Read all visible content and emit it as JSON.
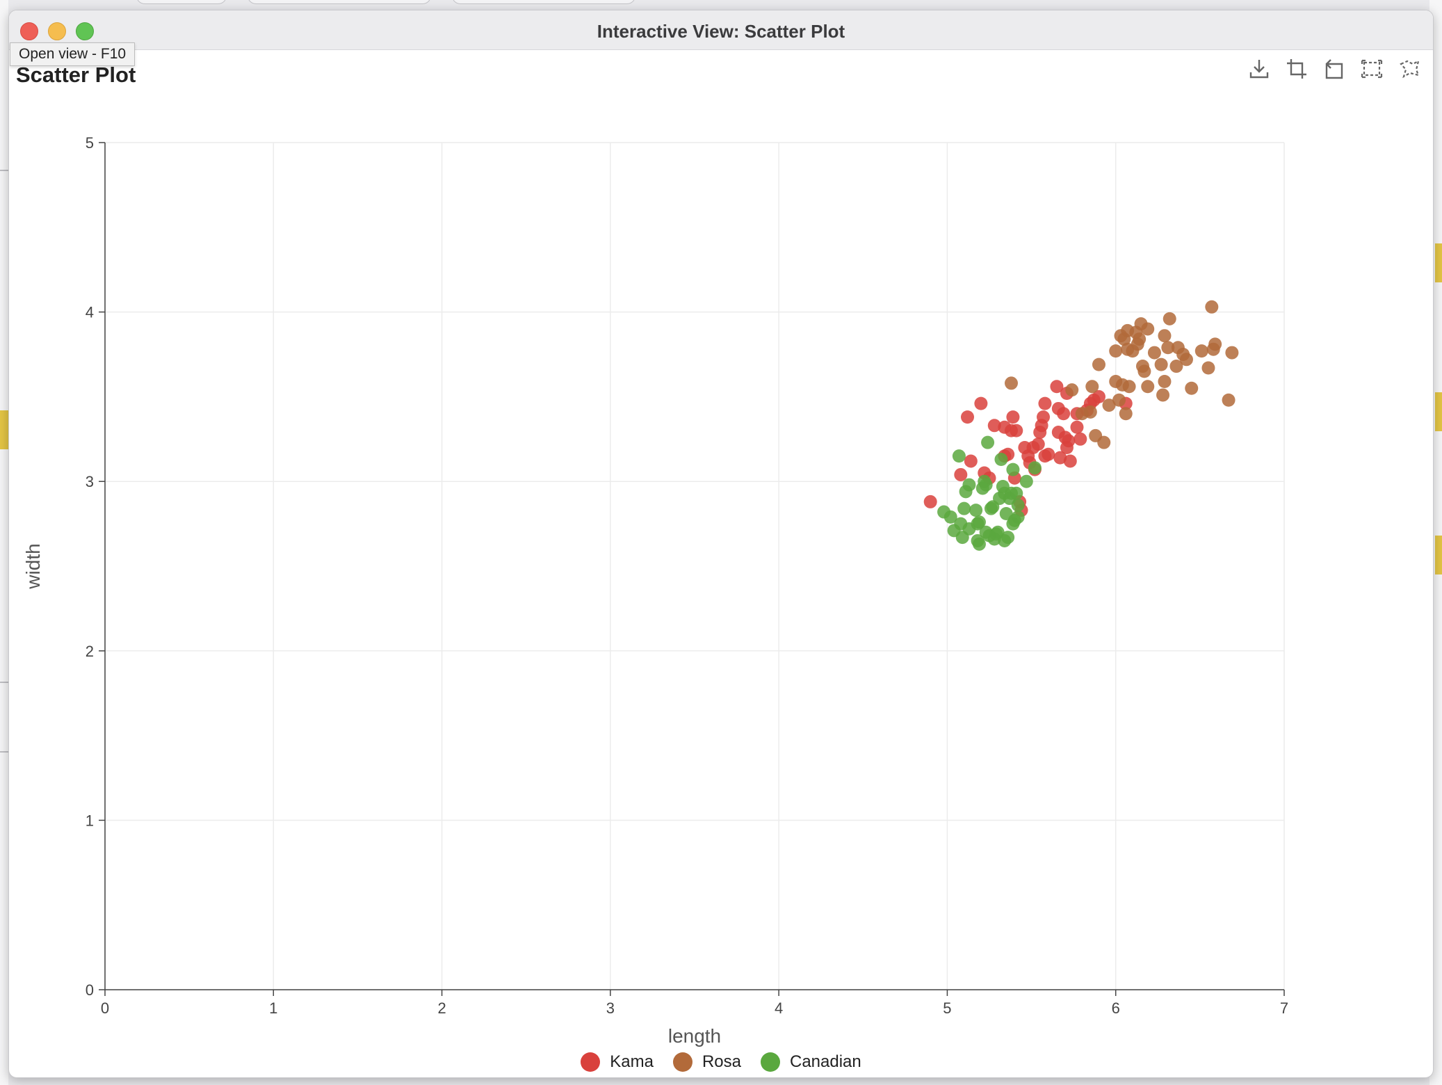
{
  "window": {
    "title": "Interactive View: Scatter Plot",
    "tooltip": "Open view - F10"
  },
  "toolbar": {
    "icons": [
      "download-icon",
      "crop-icon",
      "reset-icon",
      "rectangle-select-icon",
      "lasso-select-icon"
    ]
  },
  "colors": {
    "Kama": "#d9413c",
    "Rosa": "#b26a3a",
    "Canadian": "#5aa83e"
  },
  "chart_data": {
    "type": "scatter",
    "title": "Scatter Plot",
    "xlabel": "length",
    "ylabel": "width",
    "xlim": [
      0,
      7
    ],
    "ylim": [
      0,
      5
    ],
    "xticks": [
      0,
      1,
      2,
      3,
      4,
      5,
      6,
      7
    ],
    "yticks": [
      0,
      1,
      2,
      3,
      4,
      5
    ],
    "grid": true,
    "legend_position": "bottom",
    "series": [
      {
        "name": "Kama",
        "points": [
          [
            4.9,
            2.88
          ],
          [
            5.08,
            3.04
          ],
          [
            5.12,
            3.38
          ],
          [
            5.14,
            3.12
          ],
          [
            5.2,
            3.46
          ],
          [
            5.22,
            3.05
          ],
          [
            5.25,
            3.02
          ],
          [
            5.28,
            3.33
          ],
          [
            5.34,
            3.32
          ],
          [
            5.34,
            3.15
          ],
          [
            5.36,
            3.16
          ],
          [
            5.38,
            3.3
          ],
          [
            5.39,
            3.38
          ],
          [
            5.41,
            3.3
          ],
          [
            5.4,
            3.02
          ],
          [
            5.43,
            2.88
          ],
          [
            5.44,
            2.83
          ],
          [
            5.46,
            3.2
          ],
          [
            5.48,
            3.15
          ],
          [
            5.49,
            3.11
          ],
          [
            5.51,
            3.2
          ],
          [
            5.52,
            3.07
          ],
          [
            5.54,
            3.22
          ],
          [
            5.55,
            3.29
          ],
          [
            5.56,
            3.33
          ],
          [
            5.57,
            3.38
          ],
          [
            5.58,
            3.15
          ],
          [
            5.6,
            3.16
          ],
          [
            5.58,
            3.46
          ],
          [
            5.65,
            3.56
          ],
          [
            5.66,
            3.43
          ],
          [
            5.66,
            3.29
          ],
          [
            5.67,
            3.14
          ],
          [
            5.69,
            3.4
          ],
          [
            5.7,
            3.26
          ],
          [
            5.71,
            3.2
          ],
          [
            5.72,
            3.24
          ],
          [
            5.73,
            3.12
          ],
          [
            5.71,
            3.52
          ],
          [
            5.77,
            3.4
          ],
          [
            5.77,
            3.32
          ],
          [
            5.79,
            3.25
          ],
          [
            5.83,
            3.42
          ],
          [
            5.85,
            3.46
          ],
          [
            5.87,
            3.48
          ],
          [
            5.9,
            3.5
          ],
          [
            6.06,
            3.46
          ]
        ]
      },
      {
        "name": "Rosa",
        "points": [
          [
            5.38,
            3.58
          ],
          [
            5.74,
            3.54
          ],
          [
            5.8,
            3.4
          ],
          [
            5.85,
            3.41
          ],
          [
            5.86,
            3.56
          ],
          [
            5.9,
            3.69
          ],
          [
            5.88,
            3.27
          ],
          [
            5.93,
            3.23
          ],
          [
            5.96,
            3.45
          ],
          [
            6.0,
            3.59
          ],
          [
            6.0,
            3.77
          ],
          [
            6.02,
            3.48
          ],
          [
            6.03,
            3.86
          ],
          [
            6.04,
            3.57
          ],
          [
            6.05,
            3.84
          ],
          [
            6.07,
            3.89
          ],
          [
            6.06,
            3.4
          ],
          [
            6.07,
            3.78
          ],
          [
            6.08,
            3.56
          ],
          [
            6.1,
            3.77
          ],
          [
            6.12,
            3.88
          ],
          [
            6.13,
            3.81
          ],
          [
            6.14,
            3.84
          ],
          [
            6.15,
            3.93
          ],
          [
            6.16,
            3.68
          ],
          [
            6.17,
            3.65
          ],
          [
            6.19,
            3.9
          ],
          [
            6.19,
            3.56
          ],
          [
            6.23,
            3.76
          ],
          [
            6.27,
            3.69
          ],
          [
            6.28,
            3.51
          ],
          [
            6.29,
            3.59
          ],
          [
            6.29,
            3.86
          ],
          [
            6.32,
            3.96
          ],
          [
            6.31,
            3.79
          ],
          [
            6.36,
            3.68
          ],
          [
            6.37,
            3.79
          ],
          [
            6.4,
            3.75
          ],
          [
            6.42,
            3.72
          ],
          [
            6.45,
            3.55
          ],
          [
            6.51,
            3.77
          ],
          [
            6.55,
            3.67
          ],
          [
            6.57,
            4.03
          ],
          [
            6.58,
            3.78
          ],
          [
            6.59,
            3.81
          ],
          [
            6.67,
            3.48
          ],
          [
            6.69,
            3.76
          ]
        ]
      },
      {
        "name": "Canadian",
        "points": [
          [
            4.98,
            2.82
          ],
          [
            5.02,
            2.79
          ],
          [
            5.04,
            2.71
          ],
          [
            5.07,
            3.15
          ],
          [
            5.08,
            2.75
          ],
          [
            5.09,
            2.67
          ],
          [
            5.1,
            2.84
          ],
          [
            5.11,
            2.94
          ],
          [
            5.13,
            2.98
          ],
          [
            5.13,
            2.72
          ],
          [
            5.17,
            2.83
          ],
          [
            5.18,
            2.75
          ],
          [
            5.18,
            2.65
          ],
          [
            5.19,
            2.63
          ],
          [
            5.19,
            2.76
          ],
          [
            5.21,
            2.96
          ],
          [
            5.22,
            3.0
          ],
          [
            5.23,
            2.98
          ],
          [
            5.23,
            2.7
          ],
          [
            5.24,
            3.23
          ],
          [
            5.25,
            2.68
          ],
          [
            5.26,
            2.84
          ],
          [
            5.27,
            2.85
          ],
          [
            5.28,
            2.66
          ],
          [
            5.29,
            2.69
          ],
          [
            5.3,
            2.7
          ],
          [
            5.31,
            2.9
          ],
          [
            5.32,
            3.13
          ],
          [
            5.33,
            2.97
          ],
          [
            5.34,
            2.93
          ],
          [
            5.34,
            2.65
          ],
          [
            5.35,
            2.81
          ],
          [
            5.36,
            2.67
          ],
          [
            5.37,
            2.9
          ],
          [
            5.38,
            2.93
          ],
          [
            5.39,
            2.75
          ],
          [
            5.39,
            3.07
          ],
          [
            5.4,
            2.77
          ],
          [
            5.41,
            2.93
          ],
          [
            5.42,
            2.86
          ],
          [
            5.42,
            2.79
          ],
          [
            5.47,
            3.0
          ],
          [
            5.52,
            3.08
          ]
        ]
      }
    ]
  }
}
